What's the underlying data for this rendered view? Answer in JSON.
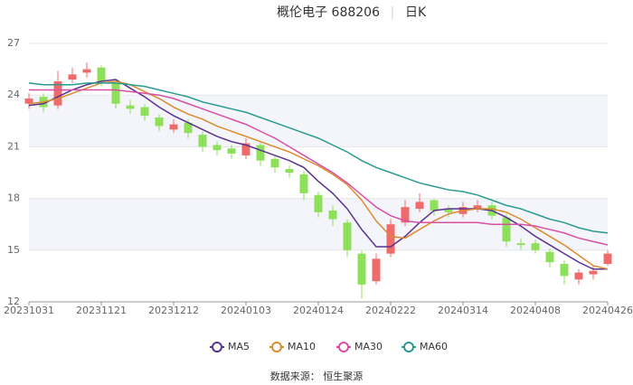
{
  "chart_data": {
    "type": "candlestick",
    "title": "概伦电子 688206",
    "subtitle": "日K",
    "source": "数据来源： 恒生聚源",
    "categories": [
      "20231031",
      null,
      null,
      null,
      null,
      "20231121",
      null,
      null,
      null,
      null,
      "20231212",
      null,
      null,
      null,
      null,
      "20240103",
      null,
      null,
      null,
      null,
      "20240124",
      null,
      null,
      null,
      null,
      "20240222",
      null,
      null,
      null,
      null,
      "20240314",
      null,
      null,
      null,
      null,
      "20240408",
      null,
      null,
      null,
      null,
      "20240426"
    ],
    "open": [
      23.5,
      23.9,
      23.4,
      24.9,
      25.3,
      25.6,
      24.7,
      23.4,
      23.3,
      22.7,
      22.0,
      22.4,
      21.7,
      21.1,
      20.9,
      20.5,
      21.1,
      20.3,
      19.7,
      19.4,
      18.2,
      17.3,
      16.6,
      14.8,
      13.2,
      14.8,
      16.6,
      17.4,
      17.9,
      17.4,
      17.1,
      17.4,
      17.6,
      16.9,
      15.4,
      15.4,
      14.9,
      14.2,
      13.3,
      13.6,
      14.2
    ],
    "close": [
      23.8,
      23.3,
      24.8,
      25.2,
      25.5,
      24.8,
      23.5,
      23.2,
      22.8,
      22.2,
      22.3,
      21.8,
      21.0,
      20.8,
      20.6,
      21.2,
      20.2,
      19.8,
      19.5,
      18.3,
      17.2,
      16.8,
      15.0,
      13.0,
      14.5,
      16.5,
      17.5,
      17.8,
      17.3,
      17.2,
      17.5,
      17.6,
      17.0,
      15.5,
      15.3,
      15.0,
      14.3,
      13.5,
      13.7,
      13.8,
      14.8
    ],
    "low": [
      23.2,
      23.0,
      23.2,
      24.7,
      25.0,
      24.5,
      23.2,
      22.9,
      22.5,
      21.9,
      21.8,
      21.5,
      20.7,
      20.5,
      20.3,
      20.3,
      19.9,
      19.5,
      19.2,
      17.9,
      16.9,
      16.4,
      14.6,
      12.2,
      13.0,
      14.6,
      16.4,
      17.2,
      17.0,
      16.9,
      16.9,
      17.2,
      16.8,
      15.2,
      15.0,
      14.8,
      14.0,
      13.0,
      13.0,
      13.3,
      14.1
    ],
    "high": [
      24.1,
      24.1,
      25.4,
      25.6,
      25.9,
      25.7,
      24.9,
      23.7,
      23.5,
      22.9,
      22.6,
      22.6,
      21.9,
      21.3,
      21.1,
      21.5,
      21.3,
      20.5,
      19.9,
      19.6,
      18.4,
      17.6,
      16.8,
      15.0,
      14.8,
      16.8,
      17.9,
      18.3,
      18.0,
      17.6,
      17.8,
      17.9,
      17.8,
      17.1,
      15.7,
      15.6,
      15.1,
      14.4,
      13.9,
      14.1,
      15.0
    ],
    "up_color": "#ef6b6b",
    "down_color": "#8ee05a",
    "series": [
      {
        "name": "MA5",
        "color": "#5b3190",
        "values": [
          23.4,
          23.5,
          23.9,
          24.3,
          24.6,
          24.8,
          24.9,
          24.4,
          23.9,
          23.3,
          22.8,
          22.4,
          22.0,
          21.6,
          21.3,
          21.1,
          20.8,
          20.5,
          20.2,
          19.8,
          19.0,
          18.3,
          17.4,
          16.2,
          15.2,
          15.2,
          15.8,
          16.6,
          17.3,
          17.4,
          17.4,
          17.4,
          17.3,
          16.9,
          16.4,
          15.8,
          15.3,
          14.8,
          14.3,
          13.9,
          13.9
        ]
      },
      {
        "name": "MA10",
        "color": "#dd8a2e",
        "values": [
          23.5,
          23.6,
          23.8,
          24.1,
          24.4,
          24.7,
          24.8,
          24.6,
          24.2,
          23.8,
          23.3,
          22.9,
          22.6,
          22.2,
          21.9,
          21.6,
          21.3,
          21.0,
          20.7,
          20.3,
          19.9,
          19.4,
          18.8,
          17.9,
          16.7,
          15.8,
          15.7,
          16.2,
          16.7,
          17.1,
          17.3,
          17.4,
          17.4,
          17.2,
          16.8,
          16.3,
          15.8,
          15.3,
          14.7,
          14.1,
          13.9
        ]
      },
      {
        "name": "MA30",
        "color": "#d94fa5",
        "values": [
          24.3,
          24.3,
          24.3,
          24.3,
          24.3,
          24.3,
          24.3,
          24.2,
          24.1,
          24.0,
          23.8,
          23.5,
          23.2,
          22.9,
          22.6,
          22.3,
          21.9,
          21.5,
          21.0,
          20.5,
          20.0,
          19.5,
          18.9,
          18.2,
          17.5,
          17.0,
          16.7,
          16.6,
          16.6,
          16.6,
          16.6,
          16.6,
          16.5,
          16.5,
          16.5,
          16.4,
          16.2,
          16.0,
          15.7,
          15.5,
          15.3
        ]
      },
      {
        "name": "MA60",
        "color": "#2a9a8f",
        "values": [
          24.7,
          24.6,
          24.6,
          24.6,
          24.7,
          24.7,
          24.7,
          24.6,
          24.5,
          24.3,
          24.1,
          23.9,
          23.6,
          23.4,
          23.2,
          23.0,
          22.7,
          22.4,
          22.1,
          21.8,
          21.5,
          21.1,
          20.7,
          20.2,
          19.8,
          19.5,
          19.2,
          18.9,
          18.7,
          18.5,
          18.4,
          18.2,
          17.9,
          17.6,
          17.4,
          17.1,
          16.8,
          16.6,
          16.3,
          16.1,
          16.0
        ]
      }
    ],
    "ylim": [
      12,
      27
    ],
    "yticks": [
      12,
      15,
      18,
      21,
      24,
      27
    ]
  }
}
